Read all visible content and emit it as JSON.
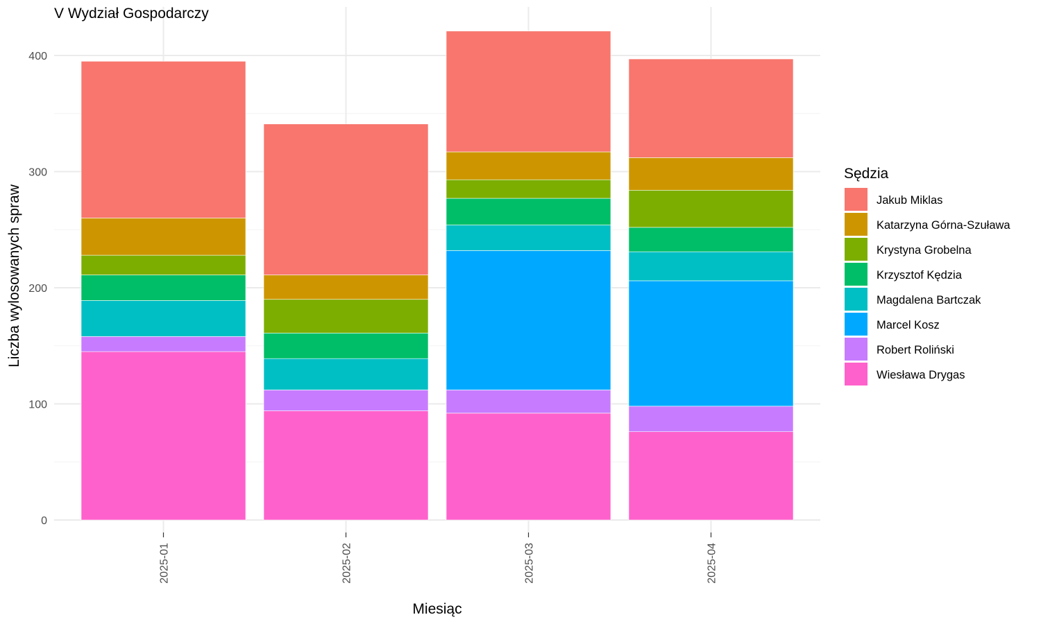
{
  "chart_data": {
    "type": "bar",
    "stacked": true,
    "title": "V Wydział Gospodarczy",
    "xlabel": "Miesiąc",
    "ylabel": "Liczba wylosowanych spraw",
    "ylim": [
      0,
      430
    ],
    "yticks": [
      0,
      100,
      200,
      300,
      400
    ],
    "grid": true,
    "legend_title": "Sędzia",
    "legend_position": "right",
    "categories": [
      "2025-01",
      "2025-02",
      "2025-03",
      "2025-04"
    ],
    "series": [
      {
        "name": "Wiesława Drygas",
        "color": "#FF61CC",
        "values": [
          145,
          94,
          92,
          76
        ]
      },
      {
        "name": "Robert Roliński",
        "color": "#C77CFF",
        "values": [
          13,
          18,
          20,
          22
        ]
      },
      {
        "name": "Marcel Kosz",
        "color": "#00A9FF",
        "values": [
          0,
          0,
          120,
          108
        ]
      },
      {
        "name": "Magdalena Bartczak",
        "color": "#00BFC4",
        "values": [
          31,
          27,
          22,
          25
        ]
      },
      {
        "name": "Krzysztof Kędzia",
        "color": "#00BE67",
        "values": [
          22,
          22,
          23,
          21
        ]
      },
      {
        "name": "Krystyna Grobelna",
        "color": "#7CAE00",
        "values": [
          17,
          29,
          16,
          32
        ]
      },
      {
        "name": "Katarzyna Górna-Szuława",
        "color": "#CD9600",
        "values": [
          32,
          21,
          24,
          28
        ]
      },
      {
        "name": "Jakub Miklas",
        "color": "#F8766D",
        "values": [
          135,
          130,
          104,
          85
        ]
      }
    ],
    "legend_order": [
      "Jakub Miklas",
      "Katarzyna Górna-Szuława",
      "Krystyna Grobelna",
      "Krzysztof Kędzia",
      "Magdalena Bartczak",
      "Marcel Kosz",
      "Robert Roliński",
      "Wiesława Drygas"
    ]
  }
}
